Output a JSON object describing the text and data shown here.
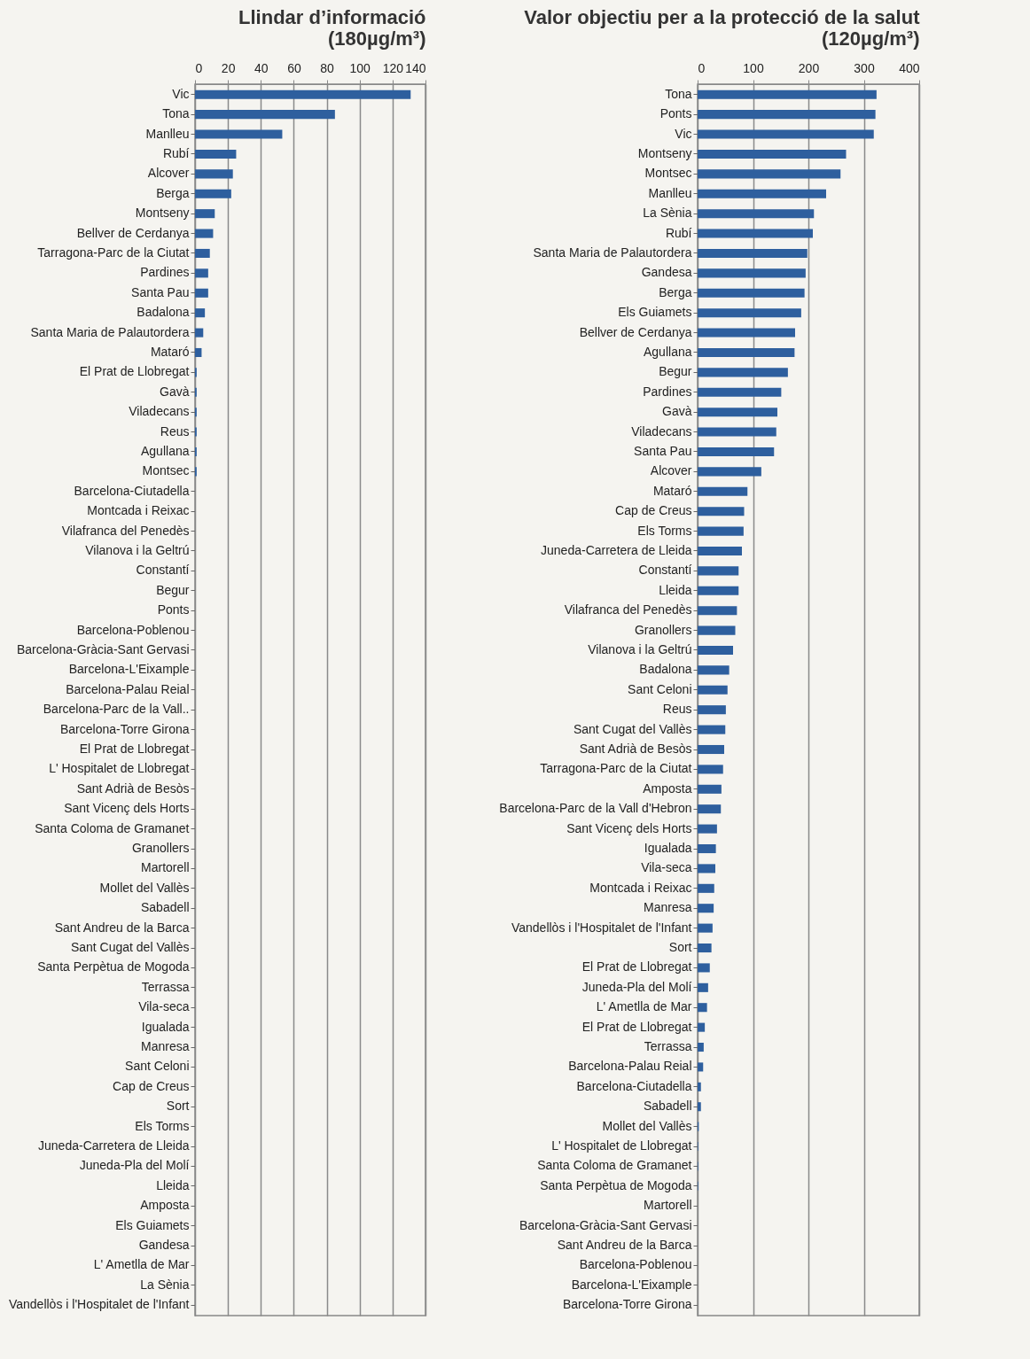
{
  "chart_data": [
    {
      "type": "bar",
      "orientation": "horizontal",
      "title": "Llindar d’informació\n(180µg/m³)",
      "color": "#2e5f9e",
      "grid": "x",
      "xlim": [
        0,
        140
      ],
      "xticks": [
        0,
        20,
        40,
        60,
        80,
        100,
        120,
        140
      ],
      "categories": [
        "Vic",
        "Tona",
        "Manlleu",
        "Rubí",
        "Alcover",
        "Berga",
        "Montseny",
        "Bellver de Cerdanya",
        "Tarragona-Parc de la Ciutat",
        "Pardines",
        "Santa Pau",
        "Badalona",
        "Santa Maria de Palautordera",
        "Mataró",
        "El Prat de Llobregat",
        "Gavà",
        "Viladecans",
        "Reus",
        "Agullana",
        "Montsec",
        "Barcelona-Ciutadella",
        "Montcada i Reixac",
        "Vilafranca del Penedès",
        "Vilanova i la Geltrú",
        "Constantí",
        "Begur",
        "Ponts",
        "Barcelona-Poblenou",
        "Barcelona-Gràcia-Sant Gervasi",
        "Barcelona-L'Eixample",
        "Barcelona-Palau Reial",
        "Barcelona-Parc de la Vall..",
        "Barcelona-Torre Girona",
        "El Prat de Llobregat",
        "L' Hospitalet de Llobregat",
        "Sant Adrià de Besòs",
        "Sant Vicenç dels Horts",
        "Santa Coloma de Gramanet",
        "Granollers",
        "Martorell",
        "Mollet del Vallès",
        "Sabadell",
        "Sant Andreu de la Barca",
        "Sant Cugat del Vallès",
        "Santa Perpètua de Mogoda",
        "Terrassa",
        "Vila-seca",
        "Igualada",
        "Manresa",
        "Sant Celoni",
        "Cap de Creus",
        "Sort",
        "Els Torms",
        "Juneda-Carretera de Lleida",
        "Juneda-Pla del Molí",
        "Lleida",
        "Amposta",
        "Els Guiamets",
        "Gandesa",
        "L' Ametlla de Mar",
        "La Sènia",
        "Vandellòs i l'Hospitalet de l'Infant"
      ],
      "values": [
        131,
        85,
        53,
        25,
        23,
        22,
        12,
        11,
        9,
        8,
        8,
        6,
        5,
        4,
        1,
        1,
        1,
        1,
        1,
        1,
        0,
        0,
        0,
        0,
        0,
        0,
        0,
        0,
        0,
        0,
        0,
        0,
        0,
        0,
        0,
        0,
        0,
        0,
        0,
        0,
        0,
        0,
        0,
        0,
        0,
        0,
        0,
        0,
        0,
        0,
        0,
        0,
        0,
        0,
        0,
        0,
        0,
        0,
        0,
        0,
        0,
        0
      ]
    },
    {
      "type": "bar",
      "orientation": "horizontal",
      "title": "Valor objectiu per a la protecció de la salut\n(120µg/m³)",
      "color": "#2e5f9e",
      "grid": "x",
      "xlim": [
        0,
        400
      ],
      "xticks": [
        0,
        100,
        200,
        300,
        400
      ],
      "categories": [
        "Tona",
        "Ponts",
        "Vic",
        "Montseny",
        "Montsec",
        "Manlleu",
        "La Sènia",
        "Rubí",
        "Santa Maria de Palautordera",
        "Gandesa",
        "Berga",
        "Els Guiamets",
        "Bellver de Cerdanya",
        "Agullana",
        "Begur",
        "Pardines",
        "Gavà",
        "Viladecans",
        "Santa Pau",
        "Alcover",
        "Mataró",
        "Cap de Creus",
        "Els Torms",
        "Juneda-Carretera de Lleida",
        "Constantí",
        "Lleida",
        "Vilafranca del Penedès",
        "Granollers",
        "Vilanova i la Geltrú",
        "Badalona",
        "Sant Celoni",
        "Reus",
        "Sant Cugat del Vallès",
        "Sant Adrià de Besòs",
        "Tarragona-Parc de la Ciutat",
        "Amposta",
        "Barcelona-Parc de la Vall d'Hebron",
        "Sant Vicenç dels Horts",
        "Igualada",
        "Vila-seca",
        "Montcada i Reixac",
        "Manresa",
        "Vandellòs i l'Hospitalet de l'Infant",
        "Sort",
        "El Prat de Llobregat",
        "Juneda-Pla del Molí",
        "L' Ametlla de Mar",
        "El Prat de Llobregat",
        "Terrassa",
        "Barcelona-Palau Reial",
        "Barcelona-Ciutadella",
        "Sabadell",
        "Mollet del Vallès",
        "L' Hospitalet de Llobregat",
        "Santa Coloma de Gramanet",
        "Santa Perpètua de Mogoda",
        "Martorell",
        "Barcelona-Gràcia-Sant Gervasi",
        "Sant Andreu de la Barca",
        "Barcelona-Poblenou",
        "Barcelona-L'Eixample",
        "Barcelona-Torre Girona"
      ],
      "values": [
        323,
        321,
        318,
        268,
        258,
        232,
        210,
        208,
        198,
        195,
        193,
        187,
        176,
        175,
        163,
        151,
        144,
        142,
        138,
        115,
        90,
        84,
        83,
        80,
        74,
        74,
        71,
        68,
        64,
        57,
        54,
        51,
        50,
        48,
        46,
        43,
        42,
        35,
        33,
        32,
        30,
        29,
        27,
        25,
        22,
        19,
        17,
        13,
        11,
        10,
        6,
        6,
        2,
        1,
        1,
        1,
        0,
        0,
        0,
        0,
        0,
        0
      ]
    }
  ]
}
